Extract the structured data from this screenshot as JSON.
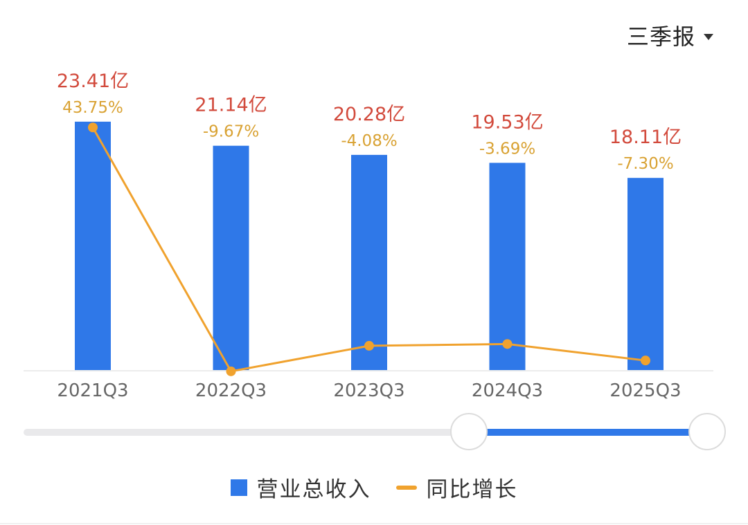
{
  "period_selector": {
    "label": "三季报"
  },
  "colors": {
    "bar": "#2f78e8",
    "line": "#f0a22e",
    "value_label": "#d24a3c",
    "growth_label": "#d9a233",
    "axis_label": "#666666"
  },
  "chart_data": {
    "type": "bar",
    "categories": [
      "2021Q3",
      "2022Q3",
      "2023Q3",
      "2024Q3",
      "2025Q3"
    ],
    "series": [
      {
        "name": "营业总收入",
        "type": "bar",
        "values": [
          23.41,
          21.14,
          20.28,
          19.53,
          18.11
        ],
        "labels": [
          "23.41亿",
          "21.14亿",
          "20.28亿",
          "19.53亿",
          "18.11亿"
        ]
      },
      {
        "name": "同比增长",
        "type": "line",
        "values": [
          43.75,
          -9.67,
          -4.08,
          -3.69,
          -7.3
        ],
        "labels": [
          "43.75%",
          "-9.67%",
          "-4.08%",
          "-3.69%",
          "-7.30%"
        ]
      }
    ],
    "legend": [
      "营业总收入",
      "同比增长"
    ],
    "legend_position": "bottom",
    "grid": false
  },
  "slider": {
    "start": 0.62,
    "end": 1.0
  }
}
